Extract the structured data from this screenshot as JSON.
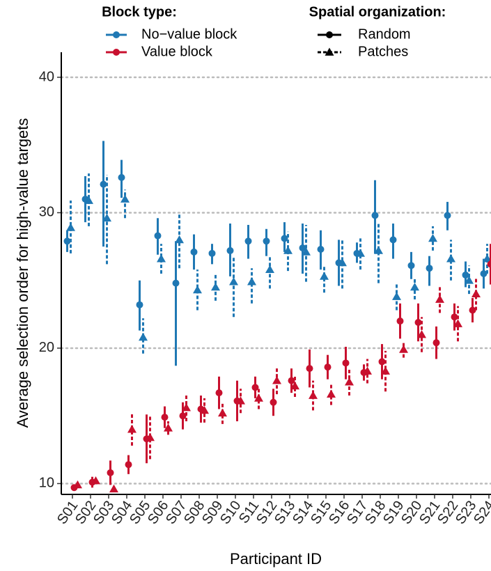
{
  "chart_data": {
    "type": "pointrange",
    "x_label": "Participant ID",
    "y_label": "Average selection order for high-value targets",
    "categories": [
      "S01",
      "S02",
      "S03",
      "S04",
      "S05",
      "S06",
      "S07",
      "S08",
      "S09",
      "S10",
      "S11",
      "S12",
      "S13",
      "S14",
      "S15",
      "S16",
      "S17",
      "S18",
      "S19",
      "S20",
      "S21",
      "S22",
      "S23",
      "S24"
    ],
    "ylim": [
      9.2,
      41.85
    ],
    "yticks": [
      10,
      20,
      30,
      40
    ],
    "grid": true,
    "legend": {
      "color_title": "Block type:",
      "shape_title": "Spatial organization:"
    },
    "organizations": [
      {
        "name": "Random",
        "marker": "circle",
        "dash": "solid"
      },
      {
        "name": "Patches",
        "marker": "triangle",
        "dash": "dashed"
      }
    ],
    "series": [
      {
        "name": "No−value block",
        "color": "#1f78b4",
        "groups": [
          {
            "values": [
              27.9,
              31.0,
              32.1,
              32.6,
              23.2,
              28.3,
              24.8,
              27.1,
              27.0,
              27.2,
              27.9,
              27.9,
              28.1,
              27.4,
              27.3,
              26.3,
              27.0,
              29.8,
              28.0,
              26.1,
              25.9,
              29.8,
              25.4,
              25.5
            ],
            "lower": [
              27.1,
              29.3,
              27.5,
              31.1,
              21.3,
              26.9,
              18.7,
              25.8,
              26.2,
              25.3,
              26.6,
              26.8,
              27.1,
              25.5,
              25.8,
              24.6,
              26.3,
              27.0,
              26.6,
              25.1,
              24.6,
              28.7,
              24.5,
              24.4
            ],
            "upper": [
              28.7,
              32.7,
              35.3,
              33.9,
              25.0,
              29.6,
              27.9,
              28.4,
              27.7,
              29.2,
              29.1,
              28.8,
              29.3,
              29.2,
              28.7,
              28.0,
              27.8,
              32.4,
              29.2,
              27.1,
              26.8,
              30.8,
              26.4,
              26.6
            ]
          },
          {
            "values": [
              28.9,
              30.9,
              29.6,
              31.0,
              20.8,
              26.6,
              28.0,
              24.3,
              24.5,
              24.9,
              24.9,
              25.8,
              27.2,
              27.1,
              25.3,
              26.3,
              27.0,
              27.2,
              23.8,
              24.5,
              28.1,
              26.6,
              25.0,
              26.6
            ],
            "lower": [
              27.0,
              29.0,
              26.2,
              29.6,
              19.6,
              25.5,
              25.9,
              22.8,
              23.5,
              22.3,
              23.3,
              24.4,
              25.7,
              24.9,
              24.1,
              24.4,
              25.8,
              24.8,
              22.8,
              23.6,
              27.2,
              25.0,
              24.0,
              25.5
            ],
            "upper": [
              30.9,
              32.9,
              32.8,
              31.7,
              22.2,
              27.7,
              30.0,
              25.8,
              25.4,
              26.8,
              25.9,
              26.8,
              28.6,
              29.1,
              26.1,
              28.0,
              28.1,
              29.3,
              24.7,
              25.2,
              29.0,
              28.0,
              26.1,
              27.7
            ]
          }
        ]
      },
      {
        "name": "Value block",
        "color": "#c8102e",
        "groups": [
          {
            "values": [
              9.7,
              10.1,
              10.8,
              11.4,
              13.3,
              14.9,
              15.0,
              15.5,
              16.7,
              16.1,
              17.1,
              16.0,
              17.6,
              18.5,
              18.6,
              18.9,
              18.2,
              19.0,
              22.0,
              21.9,
              20.4,
              22.3,
              22.8,
              26.2
            ],
            "lower": [
              9.6,
              9.7,
              9.9,
              10.7,
              11.5,
              14.1,
              14.0,
              14.5,
              15.5,
              14.6,
              16.3,
              15.0,
              16.7,
              17.1,
              17.7,
              17.7,
              17.6,
              17.7,
              20.7,
              20.5,
              19.2,
              21.3,
              21.9,
              24.7
            ],
            "upper": [
              9.8,
              10.5,
              11.7,
              12.1,
              15.1,
              15.7,
              16.0,
              16.5,
              17.9,
              17.6,
              17.9,
              17.0,
              18.5,
              19.9,
              19.5,
              20.1,
              18.8,
              20.3,
              23.3,
              23.3,
              21.6,
              23.3,
              23.7,
              27.7
            ]
          },
          {
            "values": [
              9.9,
              10.2,
              9.6,
              14.0,
              13.4,
              14.1,
              15.6,
              15.4,
              15.2,
              16.1,
              16.3,
              17.6,
              17.2,
              16.5,
              16.6,
              17.5,
              18.3,
              18.3,
              19.9,
              21.0,
              23.6,
              21.8,
              24.0,
              26.2
            ],
            "lower": [
              9.8,
              10.0,
              9.5,
              12.8,
              11.8,
              13.6,
              14.6,
              14.5,
              14.4,
              15.2,
              15.5,
              16.6,
              16.4,
              15.4,
              15.8,
              16.5,
              17.4,
              16.8,
              19.3,
              19.7,
              22.6,
              20.5,
              22.8,
              24.7
            ],
            "upper": [
              10.0,
              10.4,
              9.7,
              15.2,
              15.0,
              14.6,
              16.6,
              16.3,
              16.0,
              17.0,
              17.1,
              18.6,
              18.0,
              17.6,
              17.4,
              18.5,
              19.2,
              19.8,
              20.5,
              22.3,
              24.6,
              23.1,
              25.2,
              27.7
            ]
          }
        ]
      }
    ]
  }
}
